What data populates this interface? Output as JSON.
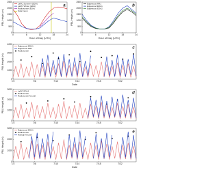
{
  "chart_data": [
    {
      "type": "line",
      "label": "a",
      "xlabel": "Hour of Day (UTC)",
      "ylabel": "PBL Height (m)",
      "x": [
        0,
        2,
        4,
        6,
        8,
        10,
        12,
        14,
        16,
        18,
        20,
        22,
        24
      ],
      "xlim": [
        0,
        24
      ],
      "xticks": [
        0,
        6,
        12,
        18,
        24
      ],
      "ylim": [
        0,
        2500
      ],
      "yticks": [
        0,
        500,
        1000,
        1500,
        2000,
        2500
      ],
      "legend": "upper left",
      "series": [
        {
          "name": "LaRC Summer (EDA)",
          "color": "#d62728",
          "values": [
            1900,
            1400,
            700,
            350,
            250,
            300,
            600,
            1200,
            1700,
            2000,
            2100,
            2050,
            1950
          ]
        },
        {
          "name": "LaRC Winter (EDA)",
          "color": "#1f3fbf",
          "values": [
            900,
            700,
            500,
            350,
            300,
            300,
            400,
            700,
            1000,
            1200,
            1100,
            1000,
            900
          ]
        },
        {
          "name": "Radiosonde (EDA)",
          "color": "#9c27b0",
          "values": [
            null,
            null,
            null,
            null,
            null,
            null,
            500,
            900,
            1300,
            1600,
            null,
            null,
            null
          ]
        }
      ],
      "vline": {
        "name": "Solar noon",
        "x": 17,
        "color": "#c6c600"
      }
    },
    {
      "type": "line",
      "label": "b",
      "xlabel": "Hour of Day (UTC)",
      "ylabel": "PBL Height (m)",
      "x": [
        0,
        2,
        4,
        6,
        8,
        10,
        12,
        14,
        16,
        18,
        20,
        22,
        24
      ],
      "xlim": [
        0,
        24
      ],
      "xticks": [
        0,
        6,
        12,
        18,
        24
      ],
      "ylim": [
        0,
        2500
      ],
      "yticks": [
        0,
        500,
        1000,
        1500,
        2000,
        2500
      ],
      "legend": "upper left",
      "series": [
        {
          "name": "Edgewood RR1",
          "color": "#111111",
          "values": [
            1200,
            800,
            500,
            350,
            300,
            300,
            400,
            800,
            1300,
            1700,
            1900,
            1700,
            1400
          ]
        },
        {
          "name": "Edgewood EDA1",
          "color": "#1f3fbf",
          "values": [
            1500,
            1000,
            600,
            400,
            300,
            300,
            500,
            1000,
            1600,
            2000,
            2200,
            1900,
            1600
          ]
        },
        {
          "name": "Edgewood EDA2",
          "color": "#2e7d32",
          "values": [
            1300,
            900,
            550,
            380,
            300,
            320,
            450,
            900,
            1400,
            1800,
            2000,
            1800,
            1500
          ]
        }
      ]
    },
    {
      "type": "line",
      "label": "c",
      "xlabel": "Date",
      "ylabel": "PBL Height (m)",
      "x": [
        2,
        2.5,
        3,
        3.5,
        4,
        4.5,
        5,
        5.5,
        6,
        6.5,
        7,
        7.5,
        8,
        8.5,
        9,
        9.5,
        10,
        10.5,
        11,
        11.5,
        12,
        12.5,
        13,
        13.5,
        14,
        14.5,
        15,
        15.5,
        16,
        16.5,
        17,
        17.5,
        18,
        18.5,
        19,
        19.5,
        20,
        20.5,
        21,
        21.5,
        22,
        22.5,
        23,
        23.5,
        24,
        24.5,
        25
      ],
      "xlim": [
        2,
        25
      ],
      "xticks": [
        {
          "value": 2,
          "label": "7/2"
        },
        {
          "value": 6,
          "label": "7/6"
        },
        {
          "value": 10,
          "label": "7/10"
        },
        {
          "value": 14,
          "label": "7/14"
        },
        {
          "value": 18,
          "label": "7/18"
        },
        {
          "value": 22,
          "label": "7/22"
        }
      ],
      "ylim": [
        0,
        4000
      ],
      "yticks": [
        0,
        1000,
        2000,
        3000,
        4000
      ],
      "legend": "upper left",
      "series": [
        {
          "name": "Edgewood EDA1",
          "color": "#e57373",
          "values": [
            200,
            1500,
            250,
            1800,
            200,
            1400,
            300,
            2000,
            200,
            1700,
            250,
            1600,
            200,
            1900,
            300,
            1500,
            200,
            1800,
            250,
            2100,
            200,
            1600,
            300,
            1700,
            200,
            1900,
            250,
            1400,
            200,
            1800,
            300,
            1600,
            200,
            2000,
            250,
            1700,
            200,
            1500,
            300,
            1900,
            200,
            1600,
            250,
            1800,
            200,
            1500,
            200
          ]
        },
        {
          "name": "Edgewood RR1",
          "color": "#1f3fbf",
          "values": [
            null,
            null,
            null,
            null,
            null,
            null,
            null,
            null,
            null,
            null,
            300,
            2400,
            400,
            2800,
            300,
            2200,
            500,
            2600,
            300,
            2900,
            400,
            2300,
            300,
            2500,
            400,
            3000,
            300,
            2100,
            400,
            2700,
            null,
            null,
            null,
            null,
            300,
            2600,
            400,
            2200,
            300,
            2800,
            400,
            2400,
            300,
            2300,
            500,
            2900,
            400
          ]
        },
        {
          "name": "Radiosonde",
          "color": "#000000",
          "marker": "scatter",
          "x": [
            3.5,
            5.5,
            7.5,
            9.5,
            10.5,
            12.5,
            14.5,
            16.5,
            18.5,
            20.5,
            22.5,
            24.5
          ],
          "values": [
            2200,
            2600,
            1800,
            3000,
            2400,
            2800,
            2000,
            3200,
            2500,
            2700,
            2300,
            2900
          ]
        }
      ]
    },
    {
      "type": "line",
      "label": "d",
      "ylabel": "PBL Height (m)",
      "x": [
        2,
        2.5,
        3,
        3.5,
        4,
        4.5,
        5,
        5.5,
        6,
        6.5,
        7,
        7.5,
        8,
        8.5,
        9,
        9.5,
        10,
        10.5,
        11,
        11.5,
        12,
        12.5,
        13,
        13.5,
        14,
        14.5,
        15,
        15.5,
        16,
        16.5,
        17,
        17.5,
        18,
        18.5,
        19,
        19.5,
        20,
        20.5,
        21,
        21.5,
        22,
        22.5,
        23,
        23.5,
        24,
        24.5,
        25
      ],
      "xlim": [
        2,
        25
      ],
      "xticks": [
        {
          "value": 2,
          "label": "7/2"
        },
        {
          "value": 6,
          "label": "7/6"
        },
        {
          "value": 10,
          "label": "7/10"
        },
        {
          "value": 14,
          "label": "7/14"
        },
        {
          "value": 18,
          "label": "7/18"
        },
        {
          "value": 22,
          "label": "7/22"
        }
      ],
      "ylim": [
        0,
        3000
      ],
      "yticks": [
        0,
        1000,
        2000,
        3000
      ],
      "legend": "upper left",
      "series": [
        {
          "name": "LaRC EDA1",
          "color": "#e57373",
          "values": [
            200,
            1300,
            250,
            1600,
            200,
            1200,
            300,
            1800,
            200,
            1500,
            250,
            1400,
            200,
            1700,
            300,
            1300,
            200,
            1600,
            250,
            1900,
            200,
            1400,
            300,
            1500,
            200,
            1700,
            250,
            1200,
            200,
            1600,
            300,
            1400,
            200,
            1800,
            250,
            1500,
            200,
            1300,
            300,
            1700,
            200,
            1400,
            250,
            1600,
            200,
            1300,
            200
          ]
        },
        {
          "name": "Radiosonde",
          "color": "#000000",
          "marker": "scatter",
          "x": [
            4.5,
            8.5,
            11.5,
            13.5,
            16.5,
            19.5,
            21.5,
            23.5
          ],
          "values": [
            1700,
            1900,
            2100,
            1800,
            2300,
            1600,
            2000,
            2200
          ]
        },
        {
          "name": "Radiosonde Aircraft",
          "color": "#1f3fbf",
          "values": [
            null,
            null,
            null,
            null,
            null,
            null,
            null,
            null,
            null,
            null,
            null,
            null,
            null,
            null,
            null,
            null,
            null,
            null,
            null,
            null,
            null,
            null,
            null,
            null,
            null,
            null,
            null,
            null,
            300,
            2200,
            400,
            2000,
            300,
            2400,
            400,
            1900,
            300,
            2300,
            400,
            2100,
            300,
            2500,
            400,
            2000,
            300,
            2200,
            300
          ]
        }
      ]
    },
    {
      "type": "line",
      "label": "e",
      "xlabel": "Date",
      "ylabel": "PBL Height (m)",
      "x": [
        2,
        2.5,
        3,
        3.5,
        4,
        4.5,
        5,
        5.5,
        6,
        6.5,
        7,
        7.5,
        8,
        8.5,
        9,
        9.5,
        10,
        10.5,
        11,
        11.5,
        12,
        12.5,
        13,
        13.5,
        14,
        14.5,
        15,
        15.5,
        16,
        16.5,
        17,
        17.5,
        18,
        18.5,
        19,
        19.5,
        20,
        20.5,
        21,
        21.5,
        22,
        22.5,
        23,
        23.5,
        24,
        24.5,
        25
      ],
      "xlim": [
        2,
        25
      ],
      "xticks": [
        {
          "value": 2,
          "label": "7/2"
        },
        {
          "value": 6,
          "label": "7/6"
        },
        {
          "value": 10,
          "label": "7/10"
        },
        {
          "value": 14,
          "label": "7/14"
        },
        {
          "value": 18,
          "label": "7/18"
        },
        {
          "value": 22,
          "label": "7/22"
        }
      ],
      "ylim": [
        0,
        3000
      ],
      "yticks": [
        0,
        1000,
        2000,
        3000
      ],
      "legend": "upper left",
      "series": [
        {
          "name": "Edgewood EDA1",
          "color": "#e57373",
          "values": [
            200,
            1400,
            250,
            1700,
            200,
            1300,
            300,
            1900,
            200,
            1600,
            250,
            1500,
            200,
            1800,
            300,
            1400,
            200,
            1700,
            250,
            2000,
            200,
            1500,
            300,
            1600,
            200,
            1800,
            250,
            1300,
            200,
            1700,
            300,
            1500,
            200,
            1900,
            250,
            1600,
            200,
            1400,
            300,
            1800,
            200,
            1500,
            250,
            1700,
            200,
            1400,
            200
          ]
        },
        {
          "name": "Radiosonde",
          "color": "#000000",
          "marker": "scatter",
          "x": [
            3.5,
            6.5,
            9.5,
            12.5,
            15.5,
            17.5,
            20.5,
            23.5
          ],
          "values": [
            1800,
            2200,
            1900,
            2400,
            2000,
            2600,
            2100,
            2300
          ]
        },
        {
          "name": "Raleigh Aircraft",
          "color": "#1f3fbf",
          "values": [
            null,
            null,
            null,
            null,
            null,
            null,
            300,
            2300,
            400,
            2600,
            300,
            2100,
            400,
            2500,
            300,
            2700,
            null,
            null,
            null,
            null,
            300,
            2400,
            400,
            2200,
            300,
            2800,
            400,
            2300,
            null,
            null,
            300,
            2500,
            400,
            2100,
            300,
            2600,
            400,
            2400,
            null,
            null,
            300,
            2200,
            400,
            2700,
            300,
            2400,
            300
          ]
        }
      ]
    }
  ]
}
